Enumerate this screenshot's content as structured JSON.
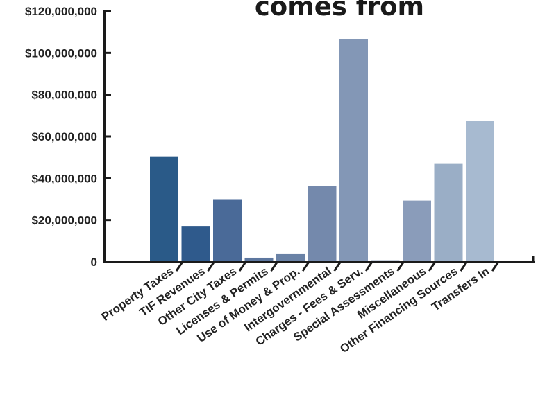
{
  "chart_data": {
    "type": "bar",
    "title": "comes from",
    "xlabel": "",
    "ylabel": "",
    "ylim": [
      0,
      120000000
    ],
    "yticks": [
      0,
      20000000,
      40000000,
      60000000,
      80000000,
      100000000,
      120000000
    ],
    "ytick_labels": [
      "0",
      "$20,000,000",
      "$40,000,000",
      "$60,000,000",
      "$80,000,000",
      "$100,000,000",
      "$120,000,000"
    ],
    "grid": false,
    "legend": "none",
    "categories": [
      "Property Taxes",
      "TIF Revenues",
      "Other City Taxes",
      "Licenses & Permits",
      "Use of Money & Prop.",
      "Intergovernmental",
      "Charges - Fees & Serv.",
      "Special Assessments",
      "Miscellaneous",
      "Other Financing Sources",
      "Transfers In"
    ],
    "values": [
      50500000,
      17200000,
      30000000,
      2000000,
      4000000,
      36300000,
      106500000,
      800000,
      29300000,
      47200000,
      67500000
    ],
    "colors": [
      "#2a5a88",
      "#2f5a8c",
      "#4a6a98",
      "#5d779f",
      "#6a82a6",
      "#7489ac",
      "#8397b6",
      "#8193b1",
      "#8a9cba",
      "#9aaec6",
      "#a7bad0"
    ],
    "axis_color": "#1a1a1a"
  }
}
